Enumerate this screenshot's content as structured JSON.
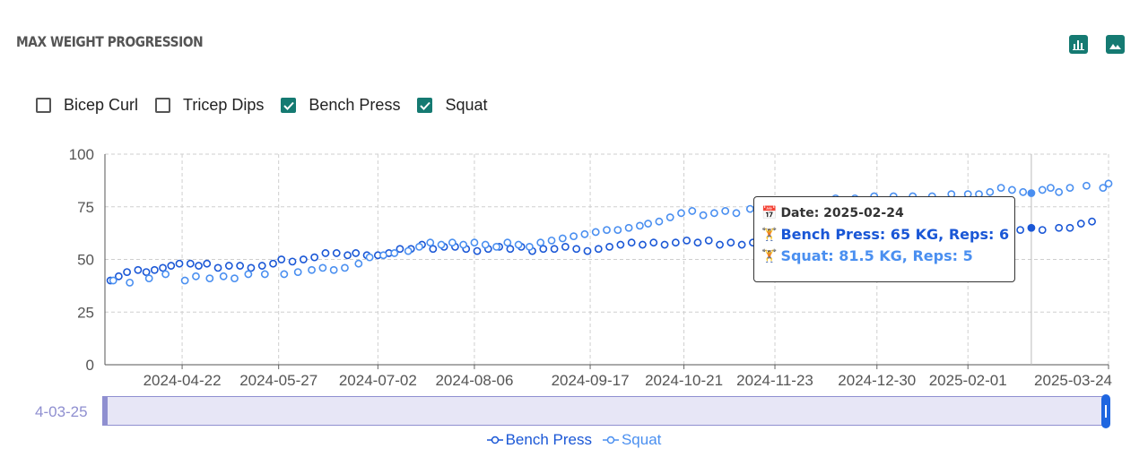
{
  "header": {
    "title": "MAX WEIGHT PROGRESSION"
  },
  "toolbar": {
    "icons": [
      "bar-chart-icon",
      "image-icon"
    ]
  },
  "filters": [
    {
      "label": "Bicep Curl",
      "checked": false
    },
    {
      "label": "Tricep Dips",
      "checked": false
    },
    {
      "label": "Bench Press",
      "checked": true
    },
    {
      "label": "Squat",
      "checked": true
    }
  ],
  "colors": {
    "accent": "#157a72",
    "bench": "#1a57d6",
    "squat": "#4a8ff0",
    "slider": "#8f8fd0"
  },
  "tooltip": {
    "date": "Date: 2025-02-24",
    "bench": "Bench Press: 65 KG, Reps: 6",
    "squat": "Squat: 81.5 KG, Reps: 5"
  },
  "slider": {
    "start_label": "4-03-25"
  },
  "chart_data": {
    "type": "scatter",
    "title": "MAX WEIGHT PROGRESSION",
    "xlabel": "",
    "ylabel": "",
    "ylim": [
      0,
      100
    ],
    "yticks": [
      0,
      25,
      50,
      75,
      100
    ],
    "x_range": [
      "2024-03-25",
      "2025-03-24"
    ],
    "x_ticks": [
      "2024-04-22",
      "2024-05-27",
      "2024-07-02",
      "2024-08-06",
      "2024-09-17",
      "2024-10-21",
      "2024-11-23",
      "2024-12-30",
      "2025-02-01",
      "2025-03-24"
    ],
    "grid": true,
    "legend": "bottom-center",
    "crosshair_date": "2025-02-24",
    "series": [
      {
        "name": "Bench Press",
        "points": [
          [
            "2024-03-27",
            40
          ],
          [
            "2024-03-30",
            42
          ],
          [
            "2024-04-02",
            44
          ],
          [
            "2024-04-06",
            45
          ],
          [
            "2024-04-09",
            44
          ],
          [
            "2024-04-12",
            45
          ],
          [
            "2024-04-15",
            46
          ],
          [
            "2024-04-18",
            47
          ],
          [
            "2024-04-21",
            48
          ],
          [
            "2024-04-25",
            48
          ],
          [
            "2024-04-28",
            47
          ],
          [
            "2024-05-01",
            48
          ],
          [
            "2024-05-05",
            46
          ],
          [
            "2024-05-09",
            47
          ],
          [
            "2024-05-13",
            47
          ],
          [
            "2024-05-17",
            46
          ],
          [
            "2024-05-21",
            47
          ],
          [
            "2024-05-25",
            48
          ],
          [
            "2024-05-28",
            50
          ],
          [
            "2024-06-01",
            49
          ],
          [
            "2024-06-05",
            50
          ],
          [
            "2024-06-09",
            51
          ],
          [
            "2024-06-13",
            53
          ],
          [
            "2024-06-17",
            53
          ],
          [
            "2024-06-21",
            52
          ],
          [
            "2024-06-24",
            53
          ],
          [
            "2024-06-28",
            52
          ],
          [
            "2024-07-02",
            52
          ],
          [
            "2024-07-06",
            53
          ],
          [
            "2024-07-10",
            55
          ],
          [
            "2024-07-14",
            55
          ],
          [
            "2024-07-18",
            57
          ],
          [
            "2024-07-22",
            55
          ],
          [
            "2024-07-26",
            56
          ],
          [
            "2024-07-30",
            56
          ],
          [
            "2024-08-03",
            55
          ],
          [
            "2024-08-07",
            54
          ],
          [
            "2024-08-11",
            55
          ],
          [
            "2024-08-15",
            56
          ],
          [
            "2024-08-19",
            55
          ],
          [
            "2024-08-23",
            56
          ],
          [
            "2024-08-27",
            54
          ],
          [
            "2024-08-31",
            55
          ],
          [
            "2024-09-04",
            55
          ],
          [
            "2024-09-08",
            56
          ],
          [
            "2024-09-12",
            55
          ],
          [
            "2024-09-16",
            54
          ],
          [
            "2024-09-20",
            55
          ],
          [
            "2024-09-24",
            56
          ],
          [
            "2024-09-28",
            57
          ],
          [
            "2024-10-02",
            58
          ],
          [
            "2024-10-06",
            57
          ],
          [
            "2024-10-10",
            58
          ],
          [
            "2024-10-14",
            57
          ],
          [
            "2024-10-18",
            58
          ],
          [
            "2024-10-22",
            59
          ],
          [
            "2024-10-26",
            58
          ],
          [
            "2024-10-30",
            59
          ],
          [
            "2024-11-03",
            57
          ],
          [
            "2024-11-07",
            58
          ],
          [
            "2024-11-11",
            57
          ],
          [
            "2024-11-15",
            58
          ],
          [
            "2024-11-19",
            59
          ],
          [
            "2024-11-23",
            60
          ],
          [
            "2024-11-27",
            60
          ],
          [
            "2024-12-01",
            61
          ],
          [
            "2024-12-05",
            60
          ],
          [
            "2024-12-09",
            61
          ],
          [
            "2024-12-13",
            61
          ],
          [
            "2024-12-17",
            62
          ],
          [
            "2024-12-21",
            62
          ],
          [
            "2024-12-25",
            63
          ],
          [
            "2024-12-29",
            62
          ],
          [
            "2025-01-02",
            63
          ],
          [
            "2025-01-06",
            63
          ],
          [
            "2025-01-10",
            64
          ],
          [
            "2025-01-14",
            63
          ],
          [
            "2025-01-18",
            64
          ],
          [
            "2025-01-22",
            64
          ],
          [
            "2025-01-26",
            65
          ],
          [
            "2025-01-30",
            64
          ],
          [
            "2025-02-03",
            65
          ],
          [
            "2025-02-07",
            65
          ],
          [
            "2025-02-12",
            64
          ],
          [
            "2025-02-16",
            65
          ],
          [
            "2025-02-20",
            64
          ],
          [
            "2025-02-24",
            65
          ],
          [
            "2025-02-28",
            64
          ],
          [
            "2025-03-06",
            65
          ],
          [
            "2025-03-10",
            65
          ],
          [
            "2025-03-14",
            67
          ],
          [
            "2025-03-18",
            68
          ]
        ]
      },
      {
        "name": "Squat",
        "points": [
          [
            "2024-03-28",
            40
          ],
          [
            "2024-04-03",
            39
          ],
          [
            "2024-04-10",
            41
          ],
          [
            "2024-04-16",
            43
          ],
          [
            "2024-04-23",
            40
          ],
          [
            "2024-04-27",
            42
          ],
          [
            "2024-05-02",
            41
          ],
          [
            "2024-05-07",
            42
          ],
          [
            "2024-05-11",
            41
          ],
          [
            "2024-05-16",
            43
          ],
          [
            "2024-05-22",
            43
          ],
          [
            "2024-05-29",
            43
          ],
          [
            "2024-06-03",
            44
          ],
          [
            "2024-06-08",
            45
          ],
          [
            "2024-06-12",
            46
          ],
          [
            "2024-06-16",
            45
          ],
          [
            "2024-06-20",
            46
          ],
          [
            "2024-06-25",
            48
          ],
          [
            "2024-06-29",
            51
          ],
          [
            "2024-07-04",
            52
          ],
          [
            "2024-07-08",
            53
          ],
          [
            "2024-07-13",
            54
          ],
          [
            "2024-07-17",
            56
          ],
          [
            "2024-07-21",
            58
          ],
          [
            "2024-07-25",
            57
          ],
          [
            "2024-07-29",
            58
          ],
          [
            "2024-08-02",
            57
          ],
          [
            "2024-08-06",
            58
          ],
          [
            "2024-08-10",
            57
          ],
          [
            "2024-08-14",
            56
          ],
          [
            "2024-08-18",
            58
          ],
          [
            "2024-08-22",
            57
          ],
          [
            "2024-08-26",
            56
          ],
          [
            "2024-08-30",
            58
          ],
          [
            "2024-09-03",
            59
          ],
          [
            "2024-09-07",
            60
          ],
          [
            "2024-09-11",
            61
          ],
          [
            "2024-09-15",
            62
          ],
          [
            "2024-09-19",
            63
          ],
          [
            "2024-09-23",
            64
          ],
          [
            "2024-09-27",
            64
          ],
          [
            "2024-10-01",
            65
          ],
          [
            "2024-10-05",
            66
          ],
          [
            "2024-10-08",
            67
          ],
          [
            "2024-10-12",
            68
          ],
          [
            "2024-10-16",
            70
          ],
          [
            "2024-10-20",
            72
          ],
          [
            "2024-10-24",
            73
          ],
          [
            "2024-10-28",
            71
          ],
          [
            "2024-11-01",
            72
          ],
          [
            "2024-11-05",
            73
          ],
          [
            "2024-11-09",
            72
          ],
          [
            "2024-11-14",
            74
          ],
          [
            "2024-11-19",
            73
          ],
          [
            "2024-11-25",
            76
          ],
          [
            "2024-12-01",
            77
          ],
          [
            "2024-12-08",
            78
          ],
          [
            "2024-12-15",
            79
          ],
          [
            "2024-12-22",
            79
          ],
          [
            "2024-12-29",
            80
          ],
          [
            "2025-01-05",
            80
          ],
          [
            "2025-01-12",
            80
          ],
          [
            "2025-01-19",
            80
          ],
          [
            "2025-01-26",
            81
          ],
          [
            "2025-02-01",
            81
          ],
          [
            "2025-02-05",
            81
          ],
          [
            "2025-02-09",
            82
          ],
          [
            "2025-02-13",
            84
          ],
          [
            "2025-02-17",
            83
          ],
          [
            "2025-02-21",
            82
          ],
          [
            "2025-02-24",
            81.5
          ],
          [
            "2025-02-28",
            83
          ],
          [
            "2025-03-03",
            84
          ],
          [
            "2025-03-06",
            82
          ],
          [
            "2025-03-10",
            84
          ],
          [
            "2025-03-16",
            85
          ],
          [
            "2025-03-22",
            84
          ],
          [
            "2025-03-24",
            86
          ]
        ]
      }
    ]
  },
  "legend": {
    "items": [
      "Bench Press",
      "Squat"
    ]
  }
}
